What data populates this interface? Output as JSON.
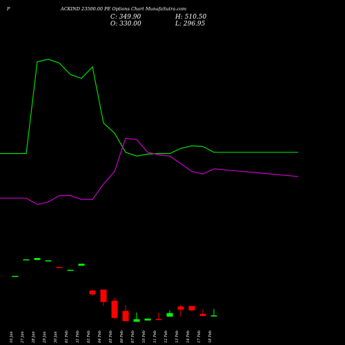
{
  "header": {
    "left_mark": "P",
    "title": "ACKIND 23500.00 PE Options Chart MunafaSutra.com",
    "open_close": "C: 349.90",
    "open": "O: 330.00",
    "high": "H: 510.50",
    "low": "L: 296.95"
  },
  "colors": {
    "background": "#000000",
    "bull": "#00ff00",
    "bear": "#ff0000",
    "upper_line": "#00e000",
    "lower_line": "#cc00cc",
    "text": "#ffffff"
  },
  "chart_data": {
    "type": "candlestick",
    "title": "ACKIND 23500.00 PE Options Chart MunafaSutra.com",
    "categories": [
      "16 Jan",
      "27 Jan",
      "28 Jan",
      "29 Jan",
      "30 Jan",
      "01 Feb",
      "31 Feb",
      "03 Feb",
      "04 Feb",
      "05 Feb",
      "06 Feb",
      "07 Feb",
      "10 Feb",
      "11 Feb",
      "12 Feb",
      "13 Feb",
      "14 Feb",
      "17 Feb",
      "18 Feb"
    ],
    "candles": [
      {
        "date": "16 Jan",
        "open": 860,
        "close": 860,
        "high": 860,
        "low": 860,
        "color": "bull"
      },
      {
        "date": "27 Jan",
        "open": 990,
        "close": 990,
        "high": 990,
        "low": 990,
        "color": "bull"
      },
      {
        "date": "28 Jan",
        "open": 985,
        "close": 1000,
        "high": 1000,
        "low": 985,
        "color": "bull"
      },
      {
        "date": "29 Jan",
        "open": 982,
        "close": 982,
        "high": 982,
        "low": 982,
        "color": "bull"
      },
      {
        "date": "30 Jan",
        "open": 930,
        "close": 925,
        "high": 930,
        "low": 925,
        "color": "bear"
      },
      {
        "date": "01 Feb",
        "open": 908,
        "close": 908,
        "high": 908,
        "low": 908,
        "color": "bull"
      },
      {
        "date": "31 Feb",
        "open": 940,
        "close": 955,
        "high": 955,
        "low": 940,
        "color": "bull"
      },
      {
        "date": "03 Feb",
        "open": 745,
        "close": 715,
        "high": 748,
        "low": 705,
        "color": "bear"
      },
      {
        "date": "04 Feb",
        "open": 752,
        "close": 655,
        "high": 752,
        "low": 625,
        "color": "bear"
      },
      {
        "date": "05 Feb",
        "open": 665,
        "close": 530,
        "high": 685,
        "low": 520,
        "color": "bear"
      },
      {
        "date": "06 Feb",
        "open": 585,
        "close": 505,
        "high": 630,
        "low": 505,
        "color": "bear"
      },
      {
        "date": "07 Feb",
        "open": 500,
        "close": 520,
        "high": 573,
        "low": 500,
        "color": "bull"
      },
      {
        "date": "10 Feb",
        "open": 510,
        "close": 525,
        "high": 525,
        "low": 510,
        "color": "bull"
      },
      {
        "date": "11 Feb",
        "open": 522,
        "close": 518,
        "high": 570,
        "low": 515,
        "color": "bear"
      },
      {
        "date": "12 Feb",
        "open": 540,
        "close": 568,
        "high": 590,
        "low": 540,
        "color": "bull"
      },
      {
        "date": "13 Feb",
        "open": 620,
        "close": 595,
        "high": 632,
        "low": 540,
        "color": "bear"
      },
      {
        "date": "14 Feb",
        "open": 624,
        "close": 590,
        "high": 624,
        "low": 580,
        "color": "bear"
      },
      {
        "date": "17 Feb",
        "open": 562,
        "close": 546,
        "high": 596,
        "low": 540,
        "color": "bear"
      },
      {
        "date": "18 Feb",
        "open": 542,
        "close": 550,
        "high": 600,
        "low": 540,
        "color": "bull"
      }
    ],
    "upper_line": [
      1820,
      1820,
      2540,
      2560,
      2530,
      2440,
      2410,
      2500,
      2060,
      1980,
      1830,
      1800,
      1815,
      1820,
      1820,
      1860,
      1880,
      1875,
      1830
    ],
    "lower_line": [
      1470,
      1470,
      1420,
      1440,
      1490,
      1490,
      1460,
      1460,
      1580,
      1680,
      1940,
      1930,
      1830,
      1810,
      1800,
      1740,
      1680,
      1660,
      1700
    ],
    "upper_line_tail": 1830,
    "lower_line_tail": 1640,
    "ylim": [
      480,
      2700
    ],
    "grid": false
  }
}
